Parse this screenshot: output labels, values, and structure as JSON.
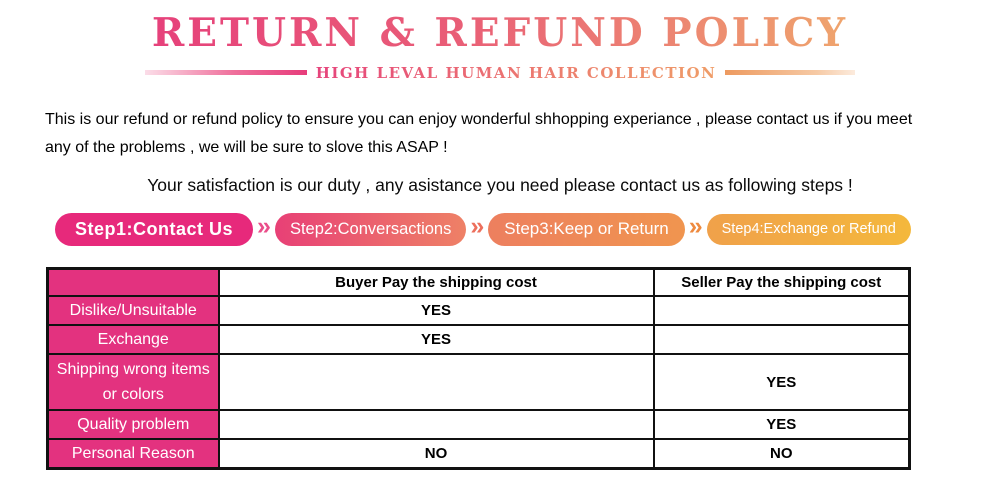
{
  "header": {
    "title": "RETURN & REFUND POLICY",
    "subtitle": "HIGH LEVAL HUMAN HAIR COLLECTION"
  },
  "intro": {
    "line1": "This is our refund or refund policy to ensure you can enjoy wonderful shhopping experiance , please contact us if you meet",
    "line2": "any of the problems , we will be sure to slove this ASAP !",
    "satisfaction": "Your satisfaction is our duty , any asistance you need please contact us as following steps !"
  },
  "steps": {
    "separator": "»",
    "items": [
      {
        "label": "Step1:Contact Us",
        "color": "#e7297b"
      },
      {
        "label": "Step2:Conversactions",
        "color_start": "#e84076",
        "color_end": "#ee8166"
      },
      {
        "label": "Step3:Keep or Return",
        "color_start": "#ed7f5f",
        "color_end": "#f0954f"
      },
      {
        "label": "Step4:Exchange or Refund",
        "color_start": "#f0a14a",
        "color_end": "#f4b83c"
      }
    ]
  },
  "policy_table": {
    "columns": [
      "",
      "Buyer Pay the shipping cost",
      "Seller Pay the shipping cost"
    ],
    "rows": [
      {
        "label": "Dislike/Unsuitable",
        "buyer": "YES",
        "seller": ""
      },
      {
        "label": "Exchange",
        "buyer": "YES",
        "seller": ""
      },
      {
        "label": "Shipping wrong items or colors",
        "buyer": "",
        "seller": "YES"
      },
      {
        "label": "Quality problem",
        "buyer": "",
        "seller": "YES"
      },
      {
        "label": "Personal Reason",
        "buyer": "NO",
        "seller": "NO"
      }
    ]
  },
  "colors": {
    "title_gradient_start": "#e6417b",
    "title_gradient_end": "#efa56d",
    "table_label_bg": "#e3327f",
    "table_border": "#111111",
    "chevron1": "#ea4e8a",
    "chevron2": "#ed6f5c",
    "chevron3": "#ee8a3f"
  }
}
